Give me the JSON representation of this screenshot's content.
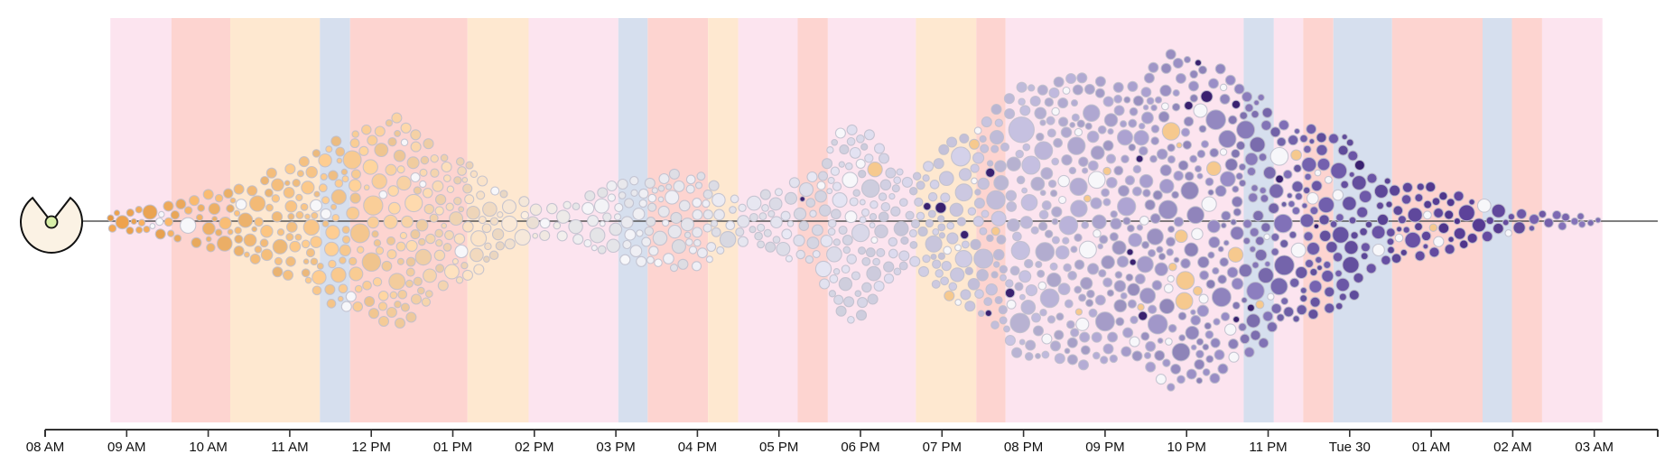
{
  "chart_data": {
    "type": "beeswarm",
    "x_axis": {
      "ticks": [
        "08 AM",
        "09 AM",
        "10 AM",
        "11 AM",
        "12 PM",
        "01 PM",
        "02 PM",
        "03 PM",
        "04 PM",
        "05 PM",
        "06 PM",
        "07 PM",
        "08 PM",
        "09 PM",
        "10 PM",
        "11 PM",
        "Tue 30",
        "01 AM",
        "02 AM",
        "03 AM"
      ],
      "start_hour": 8,
      "end_hour": 28
    },
    "envelope_half_height": [
      {
        "hour": 8.8,
        "value": 10
      },
      {
        "hour": 9.5,
        "value": 18
      },
      {
        "hour": 10.3,
        "value": 35
      },
      {
        "hour": 11.0,
        "value": 60
      },
      {
        "hour": 11.6,
        "value": 95
      },
      {
        "hour": 12.3,
        "value": 115
      },
      {
        "hour": 13.0,
        "value": 70
      },
      {
        "hour": 13.8,
        "value": 25
      },
      {
        "hour": 14.3,
        "value": 18
      },
      {
        "hour": 15.2,
        "value": 45
      },
      {
        "hour": 15.9,
        "value": 55
      },
      {
        "hour": 16.5,
        "value": 25
      },
      {
        "hour": 17.3,
        "value": 45
      },
      {
        "hour": 17.9,
        "value": 110
      },
      {
        "hour": 18.6,
        "value": 50
      },
      {
        "hour": 19.3,
        "value": 95
      },
      {
        "hour": 20.0,
        "value": 150
      },
      {
        "hour": 20.7,
        "value": 160
      },
      {
        "hour": 21.3,
        "value": 150
      },
      {
        "hour": 21.8,
        "value": 185
      },
      {
        "hour": 22.3,
        "value": 175
      },
      {
        "hour": 22.7,
        "value": 150
      },
      {
        "hour": 23.3,
        "value": 110
      },
      {
        "hour": 23.9,
        "value": 95
      },
      {
        "hour": 24.4,
        "value": 45
      },
      {
        "hour": 25.0,
        "value": 38
      },
      {
        "hour": 25.6,
        "value": 22
      },
      {
        "hour": 26.2,
        "value": 8
      },
      {
        "hour": 27.0,
        "value": 5
      },
      {
        "hour": 27.1,
        "value": 0
      }
    ],
    "color_gradient": [
      {
        "hour": 8.8,
        "color": "#EDA04A"
      },
      {
        "hour": 10.0,
        "color": "#F2B46A"
      },
      {
        "hour": 12.0,
        "color": "#F8CC95"
      },
      {
        "hour": 13.5,
        "color": "#F4DFC8"
      },
      {
        "hour": 14.5,
        "color": "#EEEEF0"
      },
      {
        "hour": 17.5,
        "color": "#DDDDEA"
      },
      {
        "hour": 19.5,
        "color": "#C7C3DE"
      },
      {
        "hour": 21.0,
        "color": "#A89FCB"
      },
      {
        "hour": 22.5,
        "color": "#8F83BD"
      },
      {
        "hour": 23.5,
        "color": "#6D5BA8"
      },
      {
        "hour": 25.5,
        "color": "#553A92"
      },
      {
        "hour": 27.1,
        "color": "#8A79BC"
      }
    ],
    "background_bands": [
      {
        "start": 8.8,
        "end": 9.55,
        "color": "#FCE4EF"
      },
      {
        "start": 9.55,
        "end": 10.27,
        "color": "#FDD4D0"
      },
      {
        "start": 10.27,
        "end": 11.37,
        "color": "#FEE8D0"
      },
      {
        "start": 11.37,
        "end": 11.74,
        "color": "#D6DFEE"
      },
      {
        "start": 11.74,
        "end": 13.18,
        "color": "#FDD4D0"
      },
      {
        "start": 13.18,
        "end": 13.93,
        "color": "#FEE8D0"
      },
      {
        "start": 13.93,
        "end": 15.03,
        "color": "#FCE4EF"
      },
      {
        "start": 15.03,
        "end": 15.39,
        "color": "#D6DFEE"
      },
      {
        "start": 15.39,
        "end": 16.13,
        "color": "#FDD4D0"
      },
      {
        "start": 16.13,
        "end": 16.5,
        "color": "#FEE8D0"
      },
      {
        "start": 16.5,
        "end": 17.23,
        "color": "#FCE4EF"
      },
      {
        "start": 17.23,
        "end": 17.6,
        "color": "#FDD4D0"
      },
      {
        "start": 17.6,
        "end": 18.68,
        "color": "#FCE4EF"
      },
      {
        "start": 18.68,
        "end": 19.42,
        "color": "#FEE8D0"
      },
      {
        "start": 19.42,
        "end": 19.78,
        "color": "#FDD4D0"
      },
      {
        "start": 19.78,
        "end": 22.7,
        "color": "#FCE4EF"
      },
      {
        "start": 22.7,
        "end": 23.07,
        "color": "#D6DFEE"
      },
      {
        "start": 23.07,
        "end": 23.43,
        "color": "#FCE4EF"
      },
      {
        "start": 23.43,
        "end": 23.8,
        "color": "#FDD4D0"
      },
      {
        "start": 23.8,
        "end": 24.52,
        "color": "#D6DFEE"
      },
      {
        "start": 24.52,
        "end": 25.63,
        "color": "#FDD4D0"
      },
      {
        "start": 25.63,
        "end": 25.99,
        "color": "#D6DFEE"
      },
      {
        "start": 25.99,
        "end": 26.36,
        "color": "#FDD4D0"
      },
      {
        "start": 26.36,
        "end": 27.1,
        "color": "#FCE4EF"
      }
    ],
    "marker_icon": "clock-pie-icon",
    "colors": {
      "axis": "#333333",
      "baseline": "#555555",
      "marker_fill": "#FBF2E4",
      "marker_dot": "#D8EFA8",
      "bubble_stroke": "rgba(190,190,205,0.85)",
      "highlight": "#FFFFFF",
      "dark": "#3A2170"
    },
    "grid": false,
    "legend": "none"
  }
}
